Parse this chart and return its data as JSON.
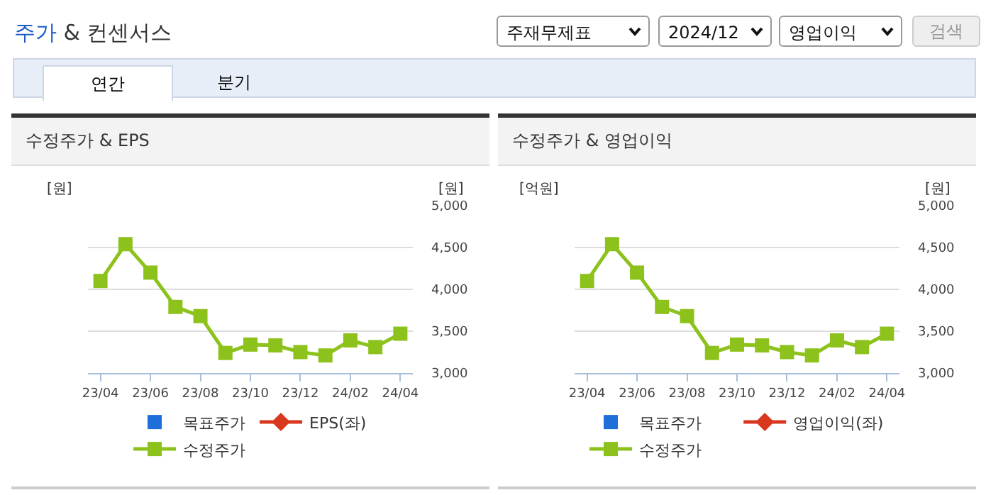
{
  "chart_data": [
    {
      "type": "other",
      "title": "주가 & 컨센서스",
      "annotations": [
        "주재무제표",
        "2024/12",
        "영업이익",
        "검색",
        "연간",
        "분기"
      ]
    },
    {
      "type": "line",
      "title": "수정주가 & EPS",
      "ylabel": "[원]",
      "y2label": "[원]",
      "categories": [
        "23/04",
        null,
        "23/06",
        null,
        "23/08",
        null,
        "23/10",
        null,
        "23/12",
        null,
        "24/02",
        null,
        "24/04"
      ],
      "series": [
        {
          "name": "목표주가",
          "type": "scatter",
          "marker": "square",
          "axis": "y2",
          "color": "#1f6fdb",
          "values": [
            null,
            null,
            null,
            null,
            null,
            null,
            null,
            null,
            null,
            null,
            null,
            null,
            null
          ]
        },
        {
          "name": "EPS(좌)",
          "type": "line",
          "marker": "diamond",
          "axis": "y",
          "color": "#d9381e",
          "values": [
            null,
            null,
            null,
            null,
            null,
            null,
            null,
            null,
            null,
            null,
            null,
            null,
            null
          ]
        },
        {
          "name": "수정주가",
          "type": "line",
          "marker": "square",
          "axis": "y2",
          "color": "#8cc21b",
          "values": [
            4100,
            4540,
            4200,
            3790,
            3680,
            3240,
            3340,
            3330,
            3250,
            3210,
            3390,
            3310,
            3470
          ]
        }
      ],
      "y2lim": [
        3000,
        5000
      ],
      "y2ticks": [
        {
          "value": 3000,
          "label": "3,000"
        },
        {
          "value": 3500,
          "label": "3,500"
        },
        {
          "value": 4000,
          "label": "4,000"
        },
        {
          "value": 4500,
          "label": "4,500"
        },
        {
          "value": 5000,
          "label": "5,000"
        }
      ],
      "grid": "y",
      "legend": "bottom"
    },
    {
      "type": "line",
      "title": "수정주가 & 영업이익",
      "ylabel": "[억원]",
      "y2label": "[원]",
      "categories": [
        "23/04",
        null,
        "23/06",
        null,
        "23/08",
        null,
        "23/10",
        null,
        "23/12",
        null,
        "24/02",
        null,
        "24/04"
      ],
      "series": [
        {
          "name": "목표주가",
          "type": "scatter",
          "marker": "square",
          "axis": "y2",
          "color": "#1f6fdb",
          "values": [
            null,
            null,
            null,
            null,
            null,
            null,
            null,
            null,
            null,
            null,
            null,
            null,
            null
          ]
        },
        {
          "name": "영업이익(좌)",
          "type": "line",
          "marker": "diamond",
          "axis": "y",
          "color": "#d9381e",
          "values": [
            null,
            null,
            null,
            null,
            null,
            null,
            null,
            null,
            null,
            null,
            null,
            null,
            null
          ]
        },
        {
          "name": "수정주가",
          "type": "line",
          "marker": "square",
          "axis": "y2",
          "color": "#8cc21b",
          "values": [
            4100,
            4540,
            4200,
            3790,
            3680,
            3240,
            3340,
            3330,
            3250,
            3210,
            3390,
            3310,
            3470
          ]
        }
      ],
      "y2lim": [
        3000,
        5000
      ],
      "y2ticks": [
        {
          "value": 3000,
          "label": "3,000"
        },
        {
          "value": 3500,
          "label": "3,500"
        },
        {
          "value": 4000,
          "label": "4,000"
        },
        {
          "value": 4500,
          "label": "4,500"
        },
        {
          "value": 5000,
          "label": "5,000"
        }
      ],
      "grid": "y",
      "legend": "bottom"
    }
  ]
}
